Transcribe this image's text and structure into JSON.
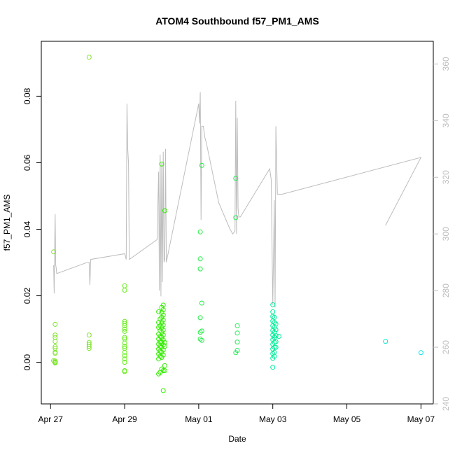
{
  "chart_data": {
    "type": "scatter",
    "title": "ATOM4 Southbound f57_PM1_AMS",
    "xlabel": "Date",
    "ylabel": "f57_PM1_AMS",
    "y2label": "",
    "x_ticks": [
      {
        "label": "Apr 27",
        "value": "2014-04-27"
      },
      {
        "label": "Apr 29",
        "value": "2014-04-29"
      },
      {
        "label": "May 01",
        "value": "2014-05-01"
      },
      {
        "label": "May 03",
        "value": "2014-05-03"
      },
      {
        "label": "May 05",
        "value": "2014-05-05"
      },
      {
        "label": "May 07",
        "value": "2014-05-07"
      }
    ],
    "xlim": [
      "2014-04-26T18:00",
      "2014-05-07T08:00"
    ],
    "ylim": [
      -0.0125,
      0.0965
    ],
    "y_ticks": [
      "0.00",
      "0.02",
      "0.04",
      "0.06",
      "0.08"
    ],
    "y2lim": [
      240,
      368
    ],
    "y2_ticks": [
      "240",
      "260",
      "280",
      "300",
      "320",
      "340",
      "360"
    ],
    "colors": {
      "axis": "#000000",
      "right_axis": "#bdbdbd",
      "line": "#bdbdbd",
      "points_apr27": "#7fe52a",
      "points_apr29": "#66ee1a",
      "points_apr30": "#33ee00",
      "points_may01": "#22ee44",
      "points_may02": "#22ee55",
      "points_may03": "#00ee99",
      "points_may06": "#00e8d0",
      "points_may07": "#00e0e8"
    },
    "series": [
      {
        "type": "line",
        "axis": "right",
        "points": [
          [
            "2014-04-27T02:00",
            289
          ],
          [
            "2014-04-27T02:20",
            279
          ],
          [
            "2014-04-27T02:40",
            296
          ],
          [
            "2014-04-27T03:00",
            307
          ],
          [
            "2014-04-27T03:20",
            289
          ],
          [
            "2014-04-27T03:40",
            288
          ],
          [
            "2014-04-27T04:00",
            286
          ],
          [
            "2014-04-28T00:00",
            290
          ],
          [
            "2014-04-28T01:00",
            290
          ],
          [
            "2014-04-28T01:30",
            282
          ],
          [
            "2014-04-28T02:00",
            291
          ],
          [
            "2014-04-29T00:00",
            293
          ],
          [
            "2014-04-29T01:00",
            291
          ],
          [
            "2014-04-29T01:30",
            346
          ],
          [
            "2014-04-29T02:00",
            330
          ],
          [
            "2014-04-29T02:30",
            325
          ],
          [
            "2014-04-29T03:00",
            291
          ],
          [
            "2014-04-29T21:00",
            298
          ],
          [
            "2014-04-29T22:00",
            322
          ],
          [
            "2014-04-29T22:30",
            280
          ],
          [
            "2014-04-29T23:00",
            328
          ],
          [
            "2014-04-29T23:30",
            278
          ],
          [
            "2014-04-30T00:00",
            325
          ],
          [
            "2014-04-30T00:30",
            283
          ],
          [
            "2014-04-30T01:00",
            329
          ],
          [
            "2014-04-30T01:30",
            290
          ],
          [
            "2014-04-30T02:00",
            291
          ],
          [
            "2014-04-30T02:30",
            330
          ],
          [
            "2014-04-30T03:00",
            290
          ],
          [
            "2014-05-01T00:00",
            346
          ],
          [
            "2014-05-01T00:30",
            339
          ],
          [
            "2014-05-01T01:00",
            350
          ],
          [
            "2014-05-01T01:30",
            305
          ],
          [
            "2014-05-01T02:00",
            338
          ],
          [
            "2014-05-01T03:00",
            338
          ],
          [
            "2014-05-01T04:00",
            334
          ],
          [
            "2014-05-01T05:00",
            332
          ],
          [
            "2014-05-01T13:00",
            311
          ],
          [
            "2014-05-01T20:00",
            302
          ],
          [
            "2014-05-01T22:00",
            300
          ],
          [
            "2014-05-01T23:30",
            301
          ],
          [
            "2014-05-02T00:00",
            347
          ],
          [
            "2014-05-02T00:30",
            300
          ],
          [
            "2014-05-02T01:00",
            341
          ],
          [
            "2014-05-02T01:30",
            309
          ],
          [
            "2014-05-02T02:00",
            306
          ],
          [
            "2014-05-02T03:00",
            306
          ],
          [
            "2014-05-02T22:00",
            323
          ],
          [
            "2014-05-02T23:00",
            319
          ],
          [
            "2014-05-03T00:00",
            275
          ],
          [
            "2014-05-03T01:00",
            312
          ],
          [
            "2014-05-03T01:30",
            274
          ],
          [
            "2014-05-03T02:00",
            338
          ],
          [
            "2014-05-03T03:00",
            314
          ],
          [
            "2014-05-03T04:00",
            314
          ],
          [
            "2014-05-03T06:00",
            314
          ],
          [
            "2014-05-07T00:00",
            327
          ],
          [
            "2014-05-06T01:00",
            303
          ]
        ]
      },
      {
        "type": "scatter",
        "axis": "left",
        "points": [
          [
            "2014-04-27T02:00",
            0.0332,
            "points_apr27"
          ],
          [
            "2014-04-27T02:00",
            0.0005,
            "points_apr27"
          ],
          [
            "2014-04-27T03:00",
            0.0114,
            "points_apr27"
          ],
          [
            "2014-04-27T03:00",
            0.0082,
            "points_apr27"
          ],
          [
            "2014-04-27T03:00",
            0.0075,
            "points_apr27"
          ],
          [
            "2014-04-27T03:00",
            0.0063,
            "points_apr27"
          ],
          [
            "2014-04-27T03:00",
            0.0047,
            "points_apr27"
          ],
          [
            "2014-04-27T03:00",
            0.0042,
            "points_apr27"
          ],
          [
            "2014-04-27T03:00",
            0.003,
            "points_apr27"
          ],
          [
            "2014-04-27T03:00",
            0.0027,
            "points_apr27"
          ],
          [
            "2014-04-27T03:00",
            0.0004,
            "points_apr27"
          ],
          [
            "2014-04-27T03:00",
            -0.0002,
            "points_apr27"
          ],
          [
            "2014-04-27T03:00",
            0.0,
            "points_apr27"
          ],
          [
            "2014-04-27T03:00",
            0.0001,
            "points_apr27"
          ],
          [
            "2014-04-28T01:00",
            0.0917,
            "points_apr27"
          ],
          [
            "2014-04-28T01:00",
            0.0082,
            "points_apr27"
          ],
          [
            "2014-04-28T01:00",
            0.006,
            "points_apr27"
          ],
          [
            "2014-04-28T01:00",
            0.0054,
            "points_apr27"
          ],
          [
            "2014-04-28T01:00",
            0.0048,
            "points_apr27"
          ],
          [
            "2014-04-28T01:00",
            0.0042,
            "points_apr27"
          ],
          [
            "2014-04-29T00:00",
            0.023,
            "points_apr29"
          ],
          [
            "2014-04-29T00:00",
            0.0217,
            "points_apr29"
          ],
          [
            "2014-04-29T00:00",
            0.0123,
            "points_apr29"
          ],
          [
            "2014-04-29T00:00",
            0.0117,
            "points_apr29"
          ],
          [
            "2014-04-29T00:00",
            0.011,
            "points_apr29"
          ],
          [
            "2014-04-29T00:00",
            0.01,
            "points_apr29"
          ],
          [
            "2014-04-29T00:00",
            0.0093,
            "points_apr29"
          ],
          [
            "2014-04-29T00:00",
            0.0075,
            "points_apr29"
          ],
          [
            "2014-04-29T00:00",
            0.007,
            "points_apr29"
          ],
          [
            "2014-04-29T00:00",
            0.0058,
            "points_apr29"
          ],
          [
            "2014-04-29T00:00",
            0.0048,
            "points_apr29"
          ],
          [
            "2014-04-29T00:00",
            0.0042,
            "points_apr29"
          ],
          [
            "2014-04-29T00:00",
            0.003,
            "points_apr29"
          ],
          [
            "2014-04-29T00:00",
            0.002,
            "points_apr29"
          ],
          [
            "2014-04-29T00:00",
            0.001,
            "points_apr29"
          ],
          [
            "2014-04-29T00:00",
            0.0,
            "points_apr29"
          ],
          [
            "2014-04-29T00:00",
            -0.0025,
            "points_apr29"
          ],
          [
            "2014-04-29T00:00",
            -0.0028,
            "points_apr29"
          ],
          [
            "2014-04-29T22:00",
            0.0152,
            "points_apr30"
          ],
          [
            "2014-04-29T22:00",
            0.012,
            "points_apr30"
          ],
          [
            "2014-04-29T22:00",
            0.0105,
            "points_apr30"
          ],
          [
            "2014-04-29T22:00",
            0.0085,
            "points_apr30"
          ],
          [
            "2014-04-29T22:00",
            0.007,
            "points_apr30"
          ],
          [
            "2014-04-29T22:00",
            0.0055,
            "points_apr30"
          ],
          [
            "2014-04-29T22:00",
            0.004,
            "points_apr30"
          ],
          [
            "2014-04-29T22:00",
            0.0025,
            "points_apr30"
          ],
          [
            "2014-04-29T22:00",
            0.001,
            "points_apr30"
          ],
          [
            "2014-04-29T22:00",
            -0.0035,
            "points_apr30"
          ],
          [
            "2014-04-29T23:00",
            0.013,
            "points_apr30"
          ],
          [
            "2014-04-29T23:00",
            0.011,
            "points_apr30"
          ],
          [
            "2014-04-29T23:00",
            0.0095,
            "points_apr30"
          ],
          [
            "2014-04-29T23:00",
            0.0078,
            "points_apr30"
          ],
          [
            "2014-04-29T23:00",
            0.0062,
            "points_apr30"
          ],
          [
            "2014-04-29T23:00",
            0.0048,
            "points_apr30"
          ],
          [
            "2014-04-29T23:00",
            0.0033,
            "points_apr30"
          ],
          [
            "2014-04-29T23:00",
            0.0018,
            "points_apr30"
          ],
          [
            "2014-04-29T23:00",
            -0.003,
            "points_apr30"
          ],
          [
            "2014-04-30T00:00",
            0.0596,
            "points_apr30"
          ],
          [
            "2014-04-30T00:00",
            0.0165,
            "points_apr30"
          ],
          [
            "2014-04-30T00:00",
            0.015,
            "points_apr30"
          ],
          [
            "2014-04-30T00:00",
            0.0135,
            "points_apr30"
          ],
          [
            "2014-04-30T00:00",
            0.012,
            "points_apr30"
          ],
          [
            "2014-04-30T00:00",
            0.0105,
            "points_apr30"
          ],
          [
            "2014-04-30T00:00",
            0.009,
            "points_apr30"
          ],
          [
            "2014-04-30T00:00",
            0.0075,
            "points_apr30"
          ],
          [
            "2014-04-30T00:00",
            0.006,
            "points_apr30"
          ],
          [
            "2014-04-30T00:00",
            0.0045,
            "points_apr30"
          ],
          [
            "2014-04-30T00:00",
            0.003,
            "points_apr30"
          ],
          [
            "2014-04-30T00:00",
            0.0015,
            "points_apr30"
          ],
          [
            "2014-04-30T00:00",
            -0.002,
            "points_apr30"
          ],
          [
            "2014-04-30T01:00",
            0.0172,
            "points_apr30"
          ],
          [
            "2014-04-30T01:00",
            0.0158,
            "points_apr30"
          ],
          [
            "2014-04-30T01:00",
            0.0142,
            "points_apr30"
          ],
          [
            "2014-04-30T01:00",
            0.0127,
            "points_apr30"
          ],
          [
            "2014-04-30T01:00",
            0.0112,
            "points_apr30"
          ],
          [
            "2014-04-30T01:00",
            0.0097,
            "points_apr30"
          ],
          [
            "2014-04-30T01:00",
            0.0082,
            "points_apr30"
          ],
          [
            "2014-04-30T01:00",
            0.0067,
            "points_apr30"
          ],
          [
            "2014-04-30T01:00",
            0.0052,
            "points_apr30"
          ],
          [
            "2014-04-30T01:00",
            0.0037,
            "points_apr30"
          ],
          [
            "2014-04-30T01:00",
            0.0022,
            "points_apr30"
          ],
          [
            "2014-04-30T01:00",
            -0.0025,
            "points_apr30"
          ],
          [
            "2014-04-30T01:00",
            -0.0085,
            "points_apr30"
          ],
          [
            "2014-04-30T02:00",
            0.0456,
            "points_apr30"
          ],
          [
            "2014-04-30T02:00",
            0.006,
            "points_apr30"
          ],
          [
            "2014-04-30T02:00",
            0.0048,
            "points_apr30"
          ],
          [
            "2014-04-30T02:00",
            -0.001,
            "points_apr30"
          ],
          [
            "2014-04-30T02:00",
            -0.0025,
            "points_apr30"
          ],
          [
            "2014-05-01T01:00",
            0.0392,
            "points_may01"
          ],
          [
            "2014-05-01T01:00",
            0.0311,
            "points_may01"
          ],
          [
            "2014-05-01T01:00",
            0.0281,
            "points_may01"
          ],
          [
            "2014-05-01T01:00",
            0.0134,
            "points_may01"
          ],
          [
            "2014-05-01T01:00",
            0.009,
            "points_may01"
          ],
          [
            "2014-05-01T01:00",
            0.007,
            "points_may01"
          ],
          [
            "2014-05-01T02:00",
            0.0592,
            "points_may01"
          ],
          [
            "2014-05-01T02:00",
            0.0178,
            "points_may01"
          ],
          [
            "2014-05-01T02:00",
            0.0094,
            "points_may01"
          ],
          [
            "2014-05-01T02:00",
            0.0066,
            "points_may01"
          ],
          [
            "2014-05-02T00:00",
            0.0553,
            "points_may02"
          ],
          [
            "2014-05-02T00:00",
            0.0435,
            "points_may02"
          ],
          [
            "2014-05-02T01:00",
            0.011,
            "points_may02"
          ],
          [
            "2014-05-02T01:00",
            0.0088,
            "points_may02"
          ],
          [
            "2014-05-02T01:00",
            0.0061,
            "points_may02"
          ],
          [
            "2014-05-02T01:00",
            0.0036,
            "points_may02"
          ],
          [
            "2014-05-02T00:00",
            0.0029,
            "points_may02"
          ],
          [
            "2014-05-03T00:00",
            0.0173,
            "points_may03"
          ],
          [
            "2014-05-03T00:00",
            0.0152,
            "points_may03"
          ],
          [
            "2014-05-03T00:00",
            0.0138,
            "points_may03"
          ],
          [
            "2014-05-03T00:00",
            0.0124,
            "points_may03"
          ],
          [
            "2014-05-03T00:00",
            0.011,
            "points_may03"
          ],
          [
            "2014-05-03T00:00",
            0.0096,
            "points_may03"
          ],
          [
            "2014-05-03T00:00",
            0.0082,
            "points_may03"
          ],
          [
            "2014-05-03T00:00",
            0.0068,
            "points_may03"
          ],
          [
            "2014-05-03T00:00",
            0.0054,
            "points_may03"
          ],
          [
            "2014-05-03T00:00",
            0.004,
            "points_may03"
          ],
          [
            "2014-05-03T00:00",
            0.0026,
            "points_may03"
          ],
          [
            "2014-05-03T00:00",
            0.0012,
            "points_may03"
          ],
          [
            "2014-05-03T00:00",
            -0.0015,
            "points_may03"
          ],
          [
            "2014-05-03T01:00",
            0.0135,
            "points_may03"
          ],
          [
            "2014-05-03T01:00",
            0.012,
            "points_may03"
          ],
          [
            "2014-05-03T01:00",
            0.0105,
            "points_may03"
          ],
          [
            "2014-05-03T01:00",
            0.009,
            "points_may03"
          ],
          [
            "2014-05-03T01:00",
            0.0075,
            "points_may03"
          ],
          [
            "2014-05-03T01:00",
            0.006,
            "points_may03"
          ],
          [
            "2014-05-03T01:00",
            0.0045,
            "points_may03"
          ],
          [
            "2014-05-03T01:00",
            0.003,
            "points_may03"
          ],
          [
            "2014-05-03T01:00",
            0.0018,
            "points_may03"
          ],
          [
            "2014-05-03T02:00",
            0.0115,
            "points_may03"
          ],
          [
            "2014-05-03T02:00",
            0.0098,
            "points_may03"
          ],
          [
            "2014-05-03T02:00",
            0.008,
            "points_may03"
          ],
          [
            "2014-05-03T02:00",
            0.0062,
            "points_may03"
          ],
          [
            "2014-05-03T02:00",
            0.0045,
            "points_may03"
          ],
          [
            "2014-05-03T04:00",
            0.0078,
            "points_may03"
          ],
          [
            "2014-05-06T01:00",
            0.0063,
            "points_may06"
          ],
          [
            "2014-05-07T00:00",
            0.0029,
            "points_may07"
          ]
        ]
      }
    ]
  }
}
